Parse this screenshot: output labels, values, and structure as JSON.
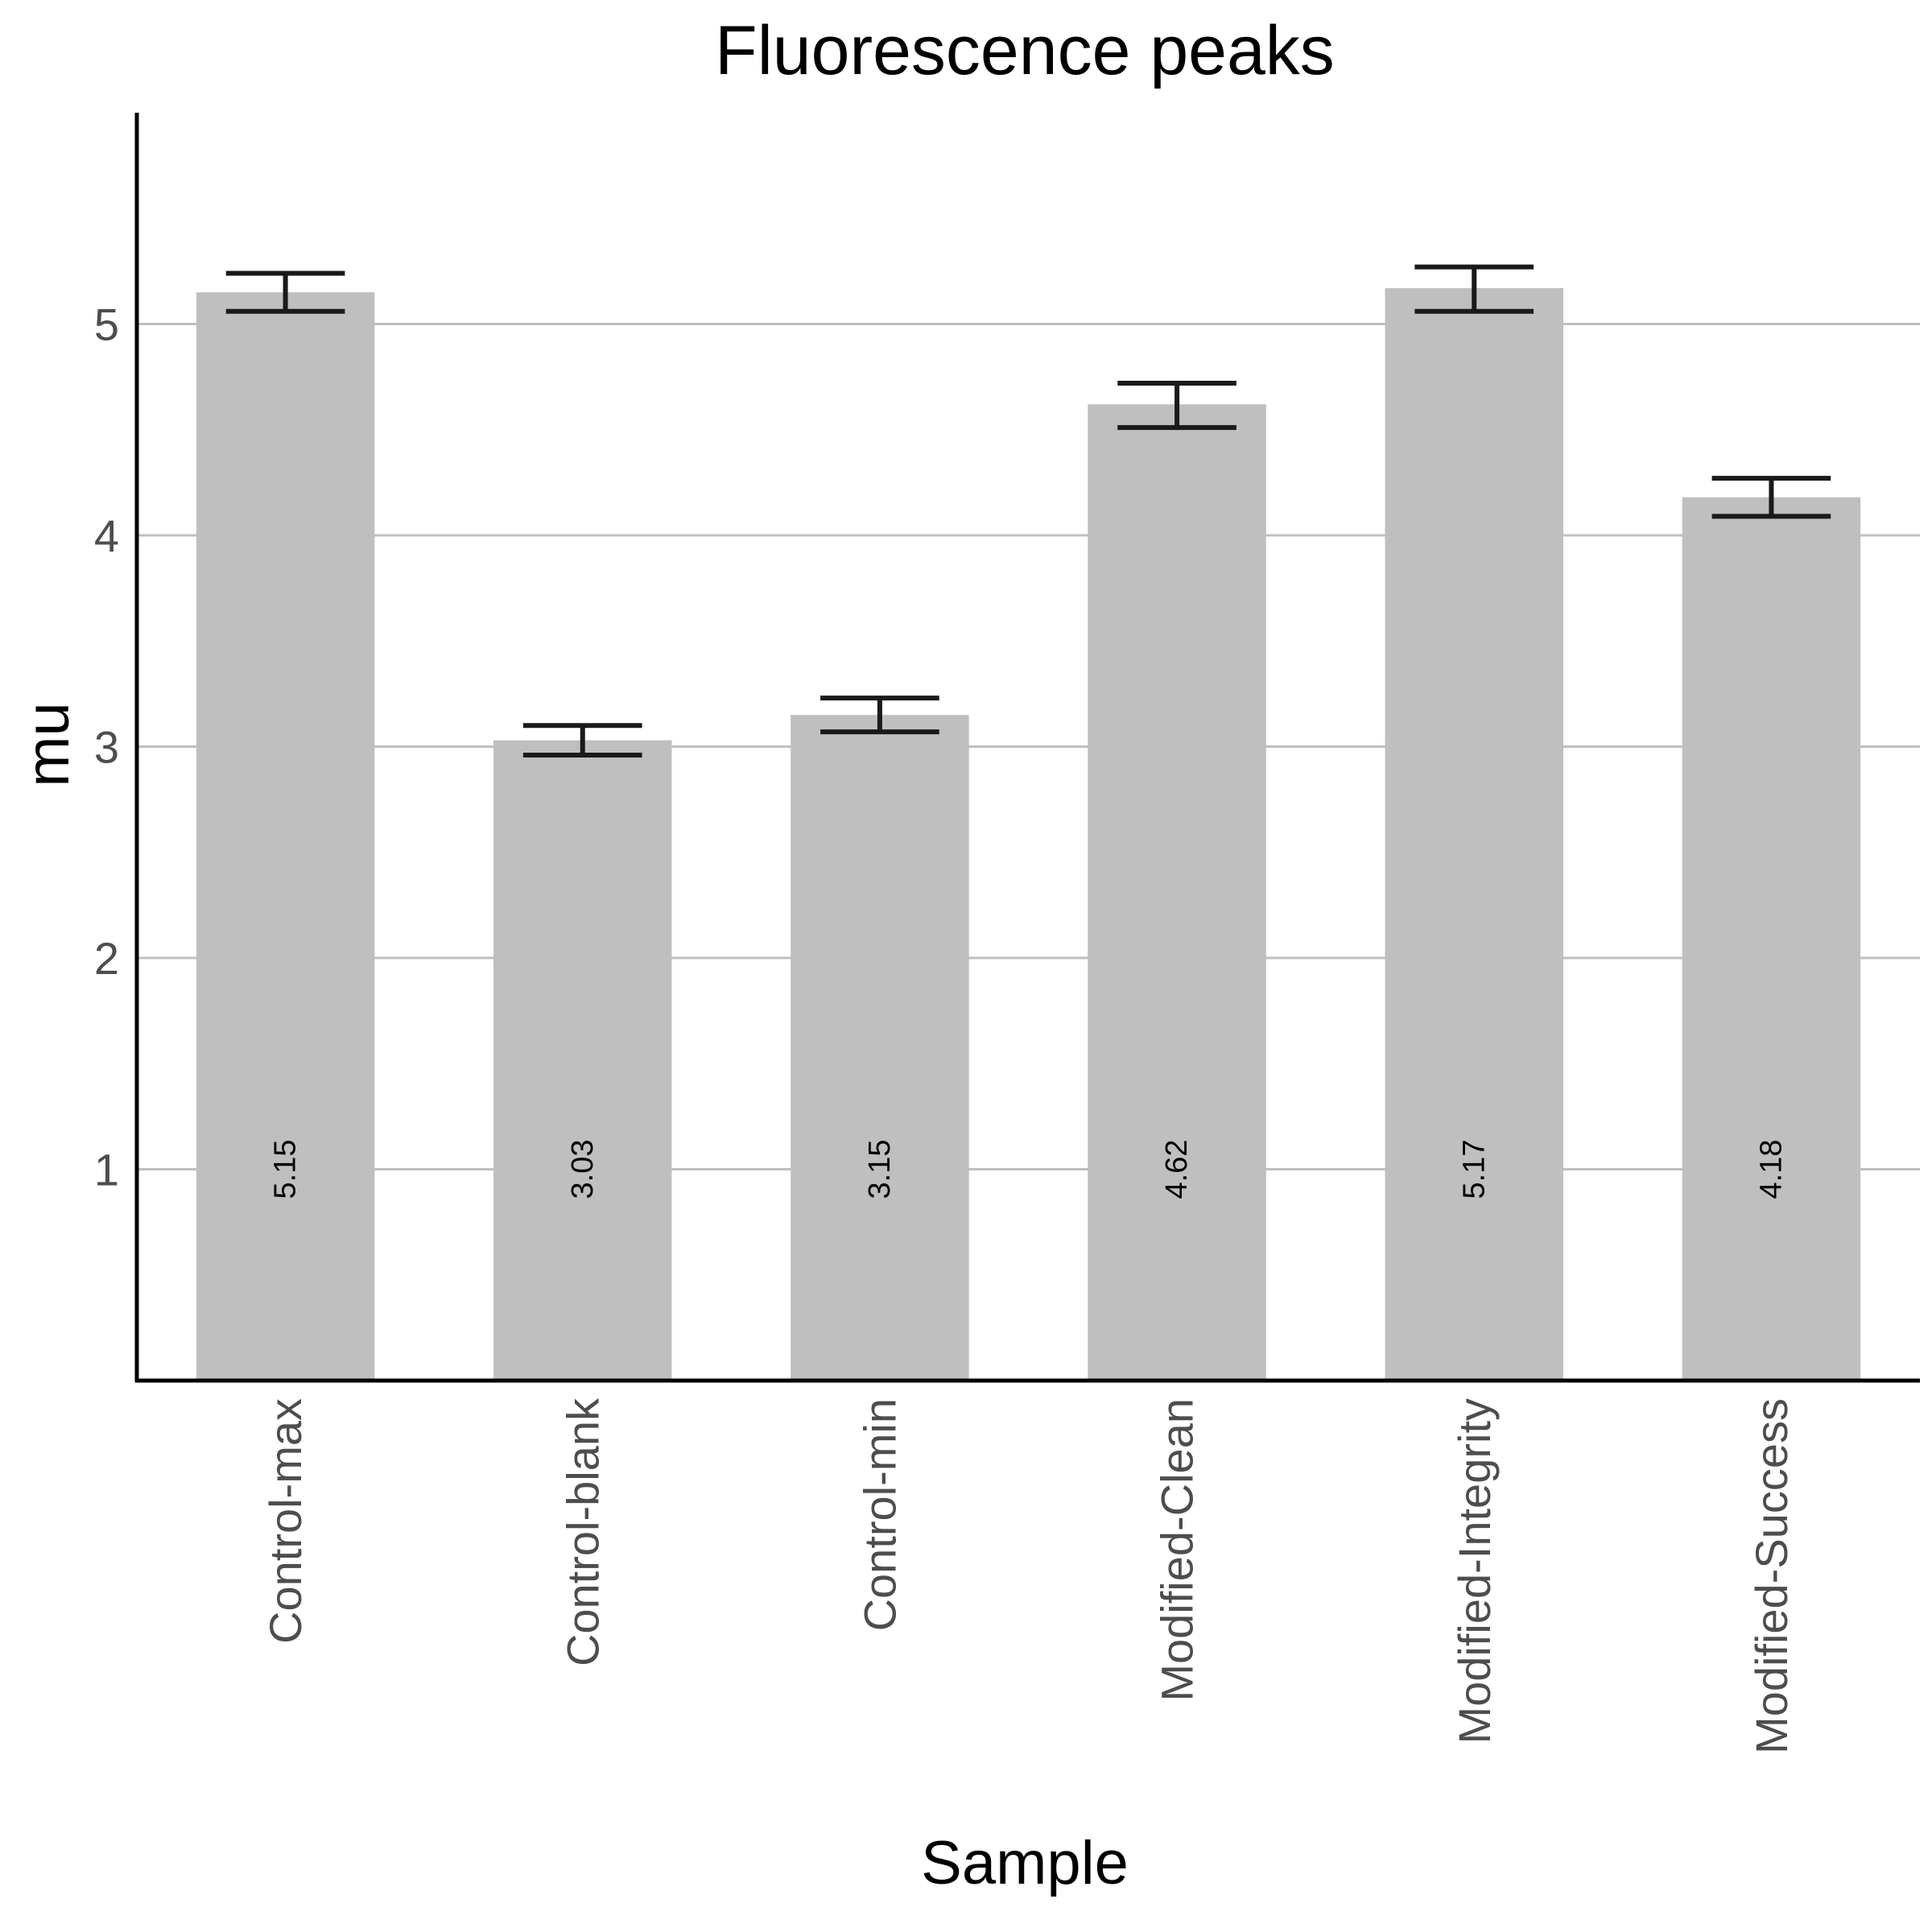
{
  "chart_data": {
    "type": "bar",
    "title": "Fluorescence peaks",
    "xlabel": "Sample",
    "ylabel": "mu",
    "categories": [
      "Control-max",
      "Control-blank",
      "Control-min",
      "Modified-Clean",
      "Modified-Integrity",
      "Modified-Success"
    ],
    "values": [
      5.15,
      3.03,
      3.15,
      4.62,
      5.17,
      4.18
    ],
    "data_labels": [
      "5.15",
      "3.03",
      "3.15",
      "4.62",
      "5.17",
      "4.18"
    ],
    "error_low": [
      5.06,
      2.96,
      3.07,
      4.51,
      5.06,
      4.09
    ],
    "error_high": [
      5.24,
      3.1,
      3.23,
      4.72,
      5.27,
      4.27
    ],
    "yticks": [
      1,
      2,
      3,
      4,
      5
    ],
    "ylim": [
      0,
      6
    ],
    "grid": "horizontal",
    "legend": "none",
    "colors": {
      "bar": "#bfbfbf",
      "grid": "#bfbfbf",
      "axis": "#000000",
      "error_bar": "#1a1a1a",
      "tick_text": "#4d4d4d"
    }
  }
}
